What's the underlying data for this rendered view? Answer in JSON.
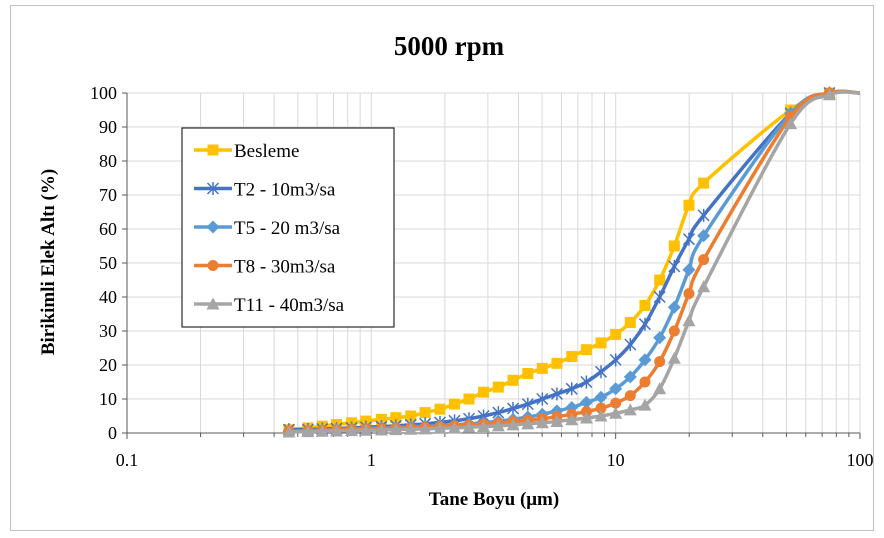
{
  "chart_data": {
    "type": "line",
    "title": "5000 rpm",
    "xlabel": "Tane Boyu (μm)",
    "ylabel": "Birikimli Elek Altı (%)",
    "x_scale": "log",
    "xlim": [
      0.1,
      100
    ],
    "ylim": [
      0,
      100
    ],
    "x_ticks": [
      "0.1",
      "1",
      "10",
      "100"
    ],
    "y_ticks": [
      "0",
      "10",
      "20",
      "30",
      "40",
      "50",
      "60",
      "70",
      "80",
      "90",
      "100"
    ],
    "grid": true,
    "legend_position": "left",
    "series": [
      {
        "name": "Besleme",
        "color": "#FFC000",
        "marker": "square",
        "points": [
          [
            0.46,
            1
          ],
          [
            0.55,
            1.5
          ],
          [
            0.63,
            2
          ],
          [
            0.72,
            2.5
          ],
          [
            0.83,
            3
          ],
          [
            0.95,
            3.5
          ],
          [
            1.1,
            4
          ],
          [
            1.26,
            4.5
          ],
          [
            1.45,
            5
          ],
          [
            1.66,
            6
          ],
          [
            1.91,
            7
          ],
          [
            2.19,
            8.5
          ],
          [
            2.51,
            10
          ],
          [
            2.88,
            12
          ],
          [
            3.31,
            13.5
          ],
          [
            3.8,
            15.5
          ],
          [
            4.37,
            17.5
          ],
          [
            5.01,
            19
          ],
          [
            5.75,
            20.5
          ],
          [
            6.61,
            22.5
          ],
          [
            7.59,
            24.5
          ],
          [
            8.71,
            26.5
          ],
          [
            10.0,
            29
          ],
          [
            11.48,
            32.5
          ],
          [
            13.18,
            37.5
          ],
          [
            15.14,
            45
          ],
          [
            17.38,
            55
          ],
          [
            19.95,
            67
          ],
          [
            22.91,
            73.5
          ],
          [
            52.0,
            95
          ],
          [
            75.0,
            100
          ]
        ]
      },
      {
        "name": "T2 - 10m3/sa",
        "color": "#4472C4",
        "marker": "star",
        "points": [
          [
            0.46,
            1
          ],
          [
            0.55,
            1
          ],
          [
            0.63,
            1.2
          ],
          [
            0.72,
            1.3
          ],
          [
            0.83,
            1.5
          ],
          [
            0.95,
            1.7
          ],
          [
            1.1,
            1.9
          ],
          [
            1.26,
            2.1
          ],
          [
            1.45,
            2.4
          ],
          [
            1.66,
            2.7
          ],
          [
            1.91,
            3.1
          ],
          [
            2.19,
            3.6
          ],
          [
            2.51,
            4.2
          ],
          [
            2.88,
            5
          ],
          [
            3.31,
            6
          ],
          [
            3.8,
            7.2
          ],
          [
            4.37,
            8.5
          ],
          [
            5.01,
            10
          ],
          [
            5.75,
            11.5
          ],
          [
            6.61,
            13
          ],
          [
            7.59,
            15
          ],
          [
            8.71,
            18
          ],
          [
            10.0,
            21.5
          ],
          [
            11.48,
            26
          ],
          [
            13.18,
            32
          ],
          [
            15.14,
            40
          ],
          [
            17.38,
            49
          ],
          [
            19.95,
            57
          ],
          [
            22.91,
            64
          ],
          [
            52.0,
            94
          ],
          [
            75.0,
            100
          ]
        ]
      },
      {
        "name": "T5 - 20 m3/sa",
        "color": "#5B9BD5",
        "marker": "diamond",
        "points": [
          [
            0.46,
            0.5
          ],
          [
            0.55,
            0.7
          ],
          [
            0.63,
            0.9
          ],
          [
            0.72,
            1
          ],
          [
            0.83,
            1.2
          ],
          [
            0.95,
            1.3
          ],
          [
            1.1,
            1.5
          ],
          [
            1.26,
            1.6
          ],
          [
            1.45,
            1.8
          ],
          [
            1.66,
            2
          ],
          [
            1.91,
            2.2
          ],
          [
            2.19,
            2.4
          ],
          [
            2.51,
            2.7
          ],
          [
            2.88,
            3
          ],
          [
            3.31,
            3.5
          ],
          [
            3.8,
            4
          ],
          [
            4.37,
            4.7
          ],
          [
            5.01,
            5.5
          ],
          [
            5.75,
            6.5
          ],
          [
            6.61,
            7.5
          ],
          [
            7.59,
            9
          ],
          [
            8.71,
            10.5
          ],
          [
            10.0,
            13
          ],
          [
            11.48,
            16.5
          ],
          [
            13.18,
            21.5
          ],
          [
            15.14,
            28
          ],
          [
            17.38,
            37
          ],
          [
            19.95,
            48
          ],
          [
            22.91,
            58
          ],
          [
            52.0,
            94
          ],
          [
            75.0,
            100
          ]
        ]
      },
      {
        "name": "T8 - 30m3/sa",
        "color": "#ED7D31",
        "marker": "circle",
        "points": [
          [
            0.46,
            0.5
          ],
          [
            0.55,
            0.6
          ],
          [
            0.63,
            0.8
          ],
          [
            0.72,
            0.9
          ],
          [
            0.83,
            1
          ],
          [
            0.95,
            1.1
          ],
          [
            1.1,
            1.2
          ],
          [
            1.26,
            1.4
          ],
          [
            1.45,
            1.5
          ],
          [
            1.66,
            1.7
          ],
          [
            1.91,
            1.9
          ],
          [
            2.19,
            2.1
          ],
          [
            2.51,
            2.3
          ],
          [
            2.88,
            2.6
          ],
          [
            3.31,
            2.9
          ],
          [
            3.8,
            3.3
          ],
          [
            4.37,
            3.7
          ],
          [
            5.01,
            4.2
          ],
          [
            5.75,
            4.8
          ],
          [
            6.61,
            5.5
          ],
          [
            7.59,
            6.3
          ],
          [
            8.71,
            7.3
          ],
          [
            10.0,
            8.8
          ],
          [
            11.48,
            11
          ],
          [
            13.18,
            15
          ],
          [
            15.14,
            21
          ],
          [
            17.38,
            30
          ],
          [
            19.95,
            41
          ],
          [
            22.91,
            51
          ],
          [
            52.0,
            93
          ],
          [
            75.0,
            100
          ]
        ]
      },
      {
        "name": "T11 - 40m3/sa",
        "color": "#A5A5A5",
        "marker": "triangle",
        "points": [
          [
            0.46,
            0.3
          ],
          [
            0.55,
            0.4
          ],
          [
            0.63,
            0.5
          ],
          [
            0.72,
            0.6
          ],
          [
            0.83,
            0.7
          ],
          [
            0.95,
            0.8
          ],
          [
            1.1,
            0.9
          ],
          [
            1.26,
            1
          ],
          [
            1.45,
            1.1
          ],
          [
            1.66,
            1.2
          ],
          [
            1.91,
            1.4
          ],
          [
            2.19,
            1.5
          ],
          [
            2.51,
            1.7
          ],
          [
            2.88,
            1.9
          ],
          [
            3.31,
            2.1
          ],
          [
            3.8,
            2.4
          ],
          [
            4.37,
            2.7
          ],
          [
            5.01,
            3
          ],
          [
            5.75,
            3.4
          ],
          [
            6.61,
            3.9
          ],
          [
            7.59,
            4.4
          ],
          [
            8.71,
            5
          ],
          [
            10.0,
            5.8
          ],
          [
            11.48,
            6.8
          ],
          [
            13.18,
            8.2
          ],
          [
            15.14,
            13
          ],
          [
            17.38,
            22
          ],
          [
            19.95,
            33
          ],
          [
            22.91,
            43
          ],
          [
            52.0,
            91
          ],
          [
            75.0,
            99.5
          ]
        ]
      }
    ]
  }
}
